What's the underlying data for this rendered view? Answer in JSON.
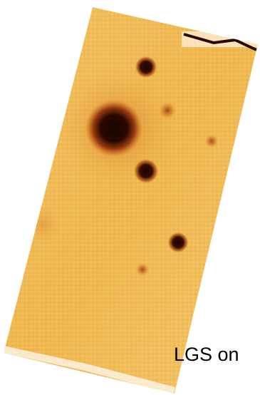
{
  "label": "LGS on"
}
